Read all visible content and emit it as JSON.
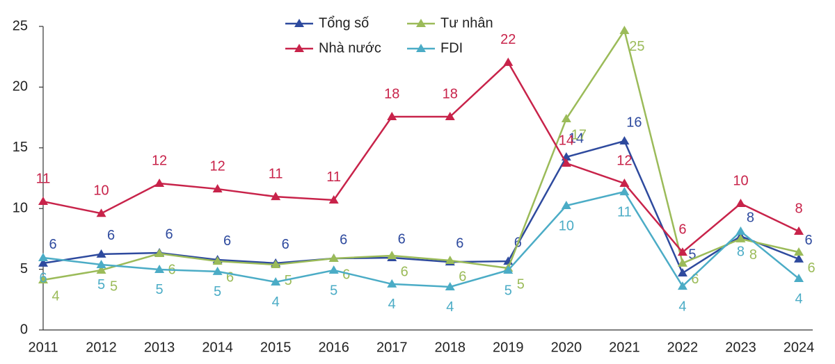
{
  "chart_data": {
    "type": "line",
    "categories": [
      "2011",
      "2012",
      "2013",
      "2014",
      "2015",
      "2016",
      "2017",
      "2018",
      "2019",
      "2020",
      "2021",
      "2022",
      "2023",
      "2024"
    ],
    "series": [
      {
        "name": "Tổng số",
        "color": "#2e4a9e",
        "values": [
          5.5,
          6.24,
          6.35,
          5.78,
          5.5,
          5.89,
          5.95,
          5.6,
          5.66,
          14.24,
          15.56,
          4.69,
          7.72,
          5.84
        ],
        "value_labels": [
          "6",
          "6",
          "6",
          "6",
          "6",
          "6",
          "6",
          "6",
          "6",
          "14",
          "16",
          "5",
          "8",
          "6"
        ]
      },
      {
        "name": "Tư nhân",
        "color": "#9bbb59",
        "values": [
          4.12,
          4.92,
          6.29,
          5.66,
          5.38,
          5.89,
          6.12,
          5.72,
          5.09,
          17.39,
          24.66,
          5.5,
          7.5,
          6.41
        ],
        "value_labels": [
          "4",
          "5",
          "6",
          "6",
          "5",
          "6",
          "6",
          "6",
          "5",
          "17",
          "25",
          "6",
          "8",
          "6"
        ]
      },
      {
        "name": "Nhà nước",
        "color": "#c8234a",
        "values": [
          10.58,
          9.6,
          12.07,
          11.61,
          10.98,
          10.7,
          17.56,
          17.56,
          22.03,
          13.73,
          12.07,
          6.4,
          10.41,
          8.12
        ],
        "value_labels": [
          "11",
          "10",
          "12",
          "12",
          "11",
          "11",
          "18",
          "18",
          "22",
          "14",
          "12",
          "6",
          "10",
          "8"
        ]
      },
      {
        "name": "FDI",
        "color": "#4bacc6",
        "values": [
          5.95,
          5.38,
          4.98,
          4.81,
          3.95,
          4.92,
          3.78,
          3.55,
          4.92,
          10.24,
          11.38,
          3.6,
          8.12,
          4.23
        ],
        "value_labels": [
          "6",
          "5",
          "5",
          "5",
          "4",
          "5",
          "4",
          "4",
          "5",
          "10",
          "11",
          "4",
          "8",
          "4"
        ]
      }
    ],
    "ylim": [
      0,
      25
    ],
    "yticks": [
      0,
      5,
      10,
      15,
      20,
      25
    ],
    "grid": false,
    "legend": "top"
  }
}
